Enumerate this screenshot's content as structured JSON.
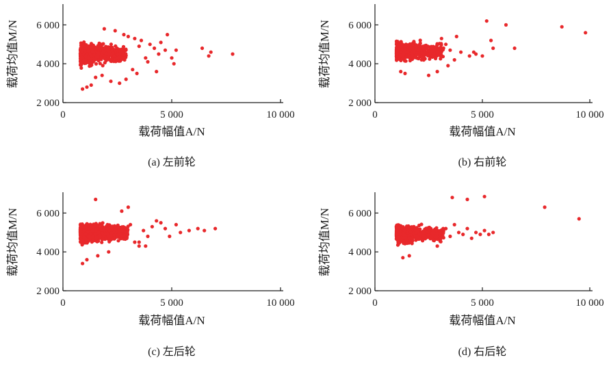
{
  "colors": {
    "point": "#e8282b",
    "axis": "#1a1a1a"
  },
  "chart_data": [
    {
      "type": "scatter",
      "panel": "a",
      "caption": "(a) 左前轮",
      "xlabel": "载荷幅值A/N",
      "ylabel": "载荷均值M/N",
      "xlim": [
        0,
        10000
      ],
      "ylim": [
        2000,
        7000
      ],
      "xticks": [
        0,
        5000,
        10000
      ],
      "xtick_labels": [
        "0",
        "5 000",
        "10 000"
      ],
      "yticks": [
        2000,
        4000,
        6000
      ],
      "ytick_labels": [
        "2 000",
        "4 000",
        "6 000"
      ],
      "grid": false,
      "cluster": {
        "x_range": [
          800,
          2900
        ],
        "y_center": 4500,
        "y_spread": 520,
        "count": 620
      },
      "points": [
        [
          3000,
          5400
        ],
        [
          3300,
          5300
        ],
        [
          3500,
          4900
        ],
        [
          3600,
          5200
        ],
        [
          3800,
          4300
        ],
        [
          4000,
          5000
        ],
        [
          4200,
          4800
        ],
        [
          4300,
          3600
        ],
        [
          4400,
          4500
        ],
        [
          4500,
          5100
        ],
        [
          4700,
          4700
        ],
        [
          4800,
          5500
        ],
        [
          5000,
          4300
        ],
        [
          5100,
          4000
        ],
        [
          5200,
          4700
        ],
        [
          3200,
          3700
        ],
        [
          3400,
          3500
        ],
        [
          3900,
          4100
        ],
        [
          2900,
          3200
        ],
        [
          2600,
          3000
        ],
        [
          2200,
          3100
        ],
        [
          1800,
          3400
        ],
        [
          1500,
          3300
        ],
        [
          1300,
          2900
        ],
        [
          1100,
          2800
        ],
        [
          900,
          2700
        ],
        [
          2400,
          5700
        ],
        [
          2800,
          5500
        ],
        [
          1900,
          5800
        ],
        [
          6400,
          4800
        ],
        [
          6700,
          4400
        ],
        [
          6800,
          4600
        ],
        [
          7800,
          4500
        ]
      ]
    },
    {
      "type": "scatter",
      "panel": "b",
      "caption": "(b) 右前轮",
      "xlabel": "载荷幅值A/N",
      "ylabel": "载荷均值M/N",
      "xlim": [
        0,
        10000
      ],
      "ylim": [
        2000,
        7000
      ],
      "xticks": [
        0,
        5000,
        10000
      ],
      "xtick_labels": [
        "0",
        "5 000",
        "10 000"
      ],
      "yticks": [
        2000,
        4000,
        6000
      ],
      "ytick_labels": [
        "2 000",
        "4 000",
        "6 000"
      ],
      "grid": false,
      "cluster": {
        "x_range": [
          1000,
          3200
        ],
        "y_center": 4650,
        "y_spread": 480,
        "count": 560
      },
      "points": [
        [
          3300,
          5000
        ],
        [
          3500,
          4700
        ],
        [
          3700,
          4200
        ],
        [
          3800,
          5400
        ],
        [
          4000,
          4600
        ],
        [
          3400,
          3900
        ],
        [
          2900,
          3600
        ],
        [
          3100,
          5300
        ],
        [
          4400,
          4400
        ],
        [
          4600,
          4600
        ],
        [
          4700,
          4500
        ],
        [
          5000,
          4400
        ],
        [
          5200,
          6200
        ],
        [
          5400,
          5200
        ],
        [
          5500,
          4800
        ],
        [
          6100,
          6000
        ],
        [
          6500,
          4800
        ],
        [
          8700,
          5900
        ],
        [
          9800,
          5600
        ],
        [
          1400,
          3500
        ],
        [
          1200,
          3600
        ],
        [
          2500,
          3400
        ]
      ]
    },
    {
      "type": "scatter",
      "panel": "c",
      "caption": "(c) 左后轮",
      "xlabel": "载荷幅值A/N",
      "ylabel": "载荷均值M/N",
      "xlim": [
        0,
        10000
      ],
      "ylim": [
        2000,
        7000
      ],
      "xticks": [
        0,
        5000,
        10000
      ],
      "xtick_labels": [
        "0",
        "5 000",
        "10 000"
      ],
      "yticks": [
        2000,
        4000,
        6000
      ],
      "ytick_labels": [
        "2 000",
        "4 000",
        "6 000"
      ],
      "grid": false,
      "cluster": {
        "x_range": [
          800,
          3000
        ],
        "y_center": 5000,
        "y_spread": 480,
        "count": 680
      },
      "points": [
        [
          3100,
          5400
        ],
        [
          3300,
          4500
        ],
        [
          3500,
          4300
        ],
        [
          3700,
          5100
        ],
        [
          3900,
          4800
        ],
        [
          4100,
          5300
        ],
        [
          4300,
          5600
        ],
        [
          4500,
          5500
        ],
        [
          4700,
          5200
        ],
        [
          4900,
          4800
        ],
        [
          5200,
          5400
        ],
        [
          5400,
          5000
        ],
        [
          5800,
          5100
        ],
        [
          6200,
          5200
        ],
        [
          6500,
          5100
        ],
        [
          7000,
          5200
        ],
        [
          3000,
          6300
        ],
        [
          2700,
          6100
        ],
        [
          1500,
          6700
        ],
        [
          900,
          3400
        ],
        [
          1100,
          3600
        ],
        [
          1600,
          3800
        ],
        [
          2100,
          4000
        ],
        [
          3500,
          4500
        ],
        [
          3800,
          4300
        ]
      ]
    },
    {
      "type": "scatter",
      "panel": "d",
      "caption": "(d) 右后轮",
      "xlabel": "载荷幅值A/N",
      "ylabel": "载荷均值M/N",
      "xlim": [
        0,
        10000
      ],
      "ylim": [
        2000,
        7000
      ],
      "xticks": [
        0,
        5000,
        10000
      ],
      "xtick_labels": [
        "0",
        "5 000",
        "10 000"
      ],
      "yticks": [
        2000,
        4000,
        6000
      ],
      "ytick_labels": [
        "2 000",
        "4 000",
        "6 000"
      ],
      "grid": false,
      "cluster": {
        "x_range": [
          1000,
          3200
        ],
        "y_center": 4900,
        "y_spread": 430,
        "count": 580
      },
      "points": [
        [
          3300,
          5200
        ],
        [
          3500,
          4800
        ],
        [
          3700,
          5400
        ],
        [
          3900,
          5000
        ],
        [
          4100,
          4900
        ],
        [
          4300,
          5200
        ],
        [
          4500,
          4700
        ],
        [
          4700,
          5000
        ],
        [
          4900,
          4900
        ],
        [
          5100,
          5100
        ],
        [
          5300,
          4900
        ],
        [
          5500,
          5000
        ],
        [
          3600,
          6800
        ],
        [
          4300,
          6700
        ],
        [
          5100,
          6850
        ],
        [
          7900,
          6300
        ],
        [
          9500,
          5700
        ],
        [
          1300,
          3700
        ],
        [
          1600,
          3800
        ],
        [
          2900,
          4300
        ]
      ]
    }
  ]
}
